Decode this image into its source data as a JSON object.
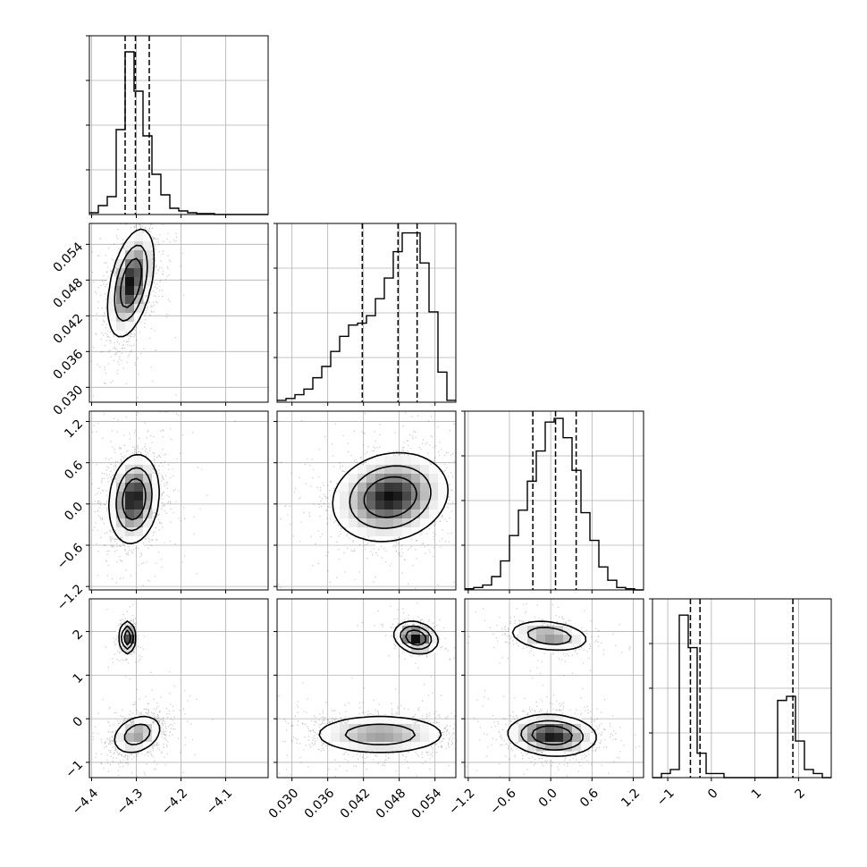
{
  "chart_data": {
    "type": "corner",
    "title": "",
    "parameters": [
      "",
      "",
      "",
      ""
    ],
    "grid": true,
    "ranges": [
      [
        -4.405,
        -4.005
      ],
      [
        0.0275,
        0.0575
      ],
      [
        -1.25,
        1.35
      ],
      [
        -1.35,
        2.75
      ]
    ],
    "ticks": [
      {
        "values": [
          -4.4,
          -4.3,
          -4.2,
          -4.1
        ],
        "labels": [
          "−4.4",
          "−4.3",
          "−4.2",
          "−4.1"
        ]
      },
      {
        "values": [
          0.03,
          0.036,
          0.042,
          0.048,
          0.054
        ],
        "labels": [
          "0.030",
          "0.036",
          "0.042",
          "0.048",
          "0.054"
        ]
      },
      {
        "values": [
          -1.2,
          -0.6,
          0.0,
          0.6,
          1.2
        ],
        "labels": [
          "−1.2",
          "−0.6",
          "0.0",
          "0.6",
          "1.2"
        ]
      },
      {
        "values": [
          -1,
          0,
          1,
          2
        ],
        "labels": [
          "−1",
          "0",
          "1",
          "2"
        ]
      }
    ],
    "quantiles": [
      [
        -4.325,
        -4.302,
        -4.271
      ],
      [
        0.0418,
        0.0478,
        0.051
      ],
      [
        -0.26,
        0.07,
        0.37
      ],
      [
        -0.48,
        -0.26,
        1.87
      ]
    ],
    "histograms": [
      {
        "edges": [
          -4.405,
          -4.385,
          -4.365,
          -4.345,
          -4.325,
          -4.305,
          -4.285,
          -4.265,
          -4.245,
          -4.225,
          -4.205,
          -4.185,
          -4.165,
          -4.145,
          -4.125,
          -4.105,
          -4.085,
          -4.065,
          -4.045,
          -4.025,
          -4.005
        ],
        "counts": [
          2,
          10,
          20,
          95,
          182,
          138,
          88,
          45,
          22,
          7,
          4,
          2,
          1,
          1,
          0,
          0,
          0,
          0,
          0,
          0
        ],
        "ymax": 200
      },
      {
        "edges": [
          0.0275,
          0.029,
          0.0305,
          0.032,
          0.0335,
          0.035,
          0.0365,
          0.038,
          0.0395,
          0.041,
          0.0425,
          0.044,
          0.0455,
          0.047,
          0.0485,
          0.05,
          0.0515,
          0.053,
          0.0545,
          0.056,
          0.0575
        ],
        "counts": [
          1,
          2,
          4,
          7,
          13,
          19,
          27,
          35,
          41,
          42,
          46,
          55,
          66,
          80,
          90,
          90,
          74,
          48,
          16,
          1
        ],
        "ymax": 95
      },
      {
        "edges": [
          -1.25,
          -1.12,
          -0.99,
          -0.86,
          -0.73,
          -0.6,
          -0.47,
          -0.34,
          -0.21,
          -0.08,
          0.05,
          0.18,
          0.31,
          0.44,
          0.57,
          0.7,
          0.83,
          0.96,
          1.09,
          1.22,
          1.35
        ],
        "counts": [
          1,
          2,
          4,
          11,
          24,
          45,
          66,
          90,
          115,
          139,
          142,
          126,
          99,
          64,
          41,
          19,
          8,
          2,
          1,
          0
        ],
        "ymax": 148
      },
      {
        "edges": [
          -1.35,
          -1.145,
          -0.94,
          -0.735,
          -0.53,
          -0.325,
          -0.12,
          0.085,
          0.29,
          0.495,
          0.7,
          0.905,
          1.11,
          1.315,
          1.52,
          1.725,
          1.93,
          2.135,
          2.34,
          2.545,
          2.75
        ],
        "counts": [
          0,
          1,
          2,
          40,
          32,
          6,
          1,
          1,
          0,
          0,
          0,
          0,
          0,
          0,
          19,
          20,
          9,
          2,
          1,
          0
        ],
        "ymax": 44
      }
    ],
    "joint": [
      {
        "row": 1,
        "col": 0,
        "blobs": [
          {
            "cx": -4.312,
            "cy": 0.0475,
            "sx": 0.024,
            "sy": 0.0042,
            "rho": 0.45,
            "w": 1.0
          }
        ]
      },
      {
        "row": 2,
        "col": 0,
        "blobs": [
          {
            "cx": -4.305,
            "cy": 0.07,
            "sx": 0.026,
            "sy": 0.3,
            "rho": 0.15,
            "w": 1.0
          }
        ]
      },
      {
        "row": 2,
        "col": 1,
        "blobs": [
          {
            "cx": 0.0465,
            "cy": 0.1,
            "sx": 0.0045,
            "sy": 0.3,
            "rho": 0.15,
            "w": 1.0
          }
        ]
      },
      {
        "row": 3,
        "col": 0,
        "blobs": [
          {
            "cx": -4.32,
            "cy": 1.86,
            "sx": 0.008,
            "sy": 0.17,
            "rho": 0.0,
            "w": 0.3
          },
          {
            "cx": -4.298,
            "cy": -0.36,
            "sx": 0.027,
            "sy": 0.22,
            "rho": 0.3,
            "w": 0.7
          }
        ]
      },
      {
        "row": 3,
        "col": 1,
        "blobs": [
          {
            "cx": 0.0508,
            "cy": 1.86,
            "sx": 0.0017,
            "sy": 0.17,
            "rho": -0.2,
            "w": 0.3
          },
          {
            "cx": 0.0448,
            "cy": -0.36,
            "sx": 0.0055,
            "sy": 0.22,
            "rho": 0.0,
            "w": 0.7
          }
        ]
      },
      {
        "row": 3,
        "col": 2,
        "blobs": [
          {
            "cx": -0.02,
            "cy": 1.9,
            "sx": 0.28,
            "sy": 0.17,
            "rho": -0.25,
            "w": 0.3
          },
          {
            "cx": 0.02,
            "cy": -0.38,
            "sx": 0.3,
            "sy": 0.22,
            "rho": -0.1,
            "w": 0.7
          }
        ]
      }
    ]
  }
}
